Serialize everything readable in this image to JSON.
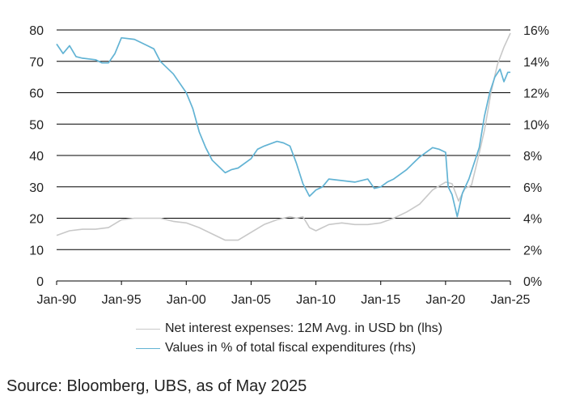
{
  "chart_data": {
    "type": "line",
    "x_ticks": [
      "Jan-90",
      "Jan-95",
      "Jan-00",
      "Jan-05",
      "Jan-10",
      "Jan-15",
      "Jan-20",
      "Jan-25"
    ],
    "x_range": [
      1990.0,
      2025.0
    ],
    "y_left": {
      "ticks": [
        "0",
        "10",
        "20",
        "30",
        "40",
        "50",
        "60",
        "70",
        "80"
      ],
      "range": [
        0,
        80
      ]
    },
    "y_right": {
      "ticks": [
        "0%",
        "2%",
        "4%",
        "6%",
        "8%",
        "10%",
        "12%",
        "14%",
        "16%"
      ],
      "range": [
        0,
        16
      ]
    },
    "grid": true,
    "series": [
      {
        "name": "Net interest expenses: 12M Avg. in USD bn (lhs)",
        "axis": "left",
        "color": "#c8c8c8",
        "x": [
          1990.0,
          1991.0,
          1992.0,
          1993.0,
          1994.0,
          1995.0,
          1996.0,
          1997.0,
          1998.0,
          1999.0,
          2000.0,
          2001.0,
          2002.0,
          2003.0,
          2004.0,
          2005.0,
          2006.0,
          2007.0,
          2008.0,
          2008.5,
          2009.0,
          2009.5,
          2010.0,
          2010.5,
          2011.0,
          2012.0,
          2013.0,
          2014.0,
          2015.0,
          2016.0,
          2017.0,
          2018.0,
          2019.0,
          2020.0,
          2020.5,
          2021.0,
          2021.5,
          2022.0,
          2022.5,
          2023.0,
          2023.5,
          2024.0,
          2024.5,
          2025.0
        ],
        "y": [
          14.5,
          16.0,
          16.5,
          16.5,
          17.0,
          19.5,
          20.0,
          20.0,
          20.0,
          19.0,
          18.5,
          17.0,
          15.0,
          13.0,
          13.0,
          15.5,
          18.0,
          19.5,
          20.5,
          20.0,
          20.5,
          17.0,
          16.0,
          17.0,
          18.0,
          18.5,
          18.0,
          18.0,
          18.5,
          20.0,
          22.0,
          24.5,
          29.0,
          31.5,
          31.0,
          25.5,
          29.5,
          30.5,
          39.0,
          48.0,
          60.0,
          69.0,
          74.5,
          79.0
        ]
      },
      {
        "name": "Values in % of total fiscal expenditures (rhs)",
        "axis": "right",
        "color": "#62b3d4",
        "x": [
          1990.0,
          1990.5,
          1991.0,
          1991.5,
          1992.0,
          1993.0,
          1993.5,
          1994.0,
          1994.5,
          1995.0,
          1996.0,
          1997.0,
          1997.5,
          1998.0,
          1999.0,
          2000.0,
          2000.5,
          2001.0,
          2001.5,
          2002.0,
          2002.5,
          2003.0,
          2003.5,
          2004.0,
          2005.0,
          2005.5,
          2006.0,
          2007.0,
          2007.5,
          2008.0,
          2008.5,
          2009.0,
          2009.5,
          2010.0,
          2010.5,
          2011.0,
          2012.0,
          2013.0,
          2014.0,
          2014.5,
          2015.0,
          2015.5,
          2016.0,
          2017.0,
          2018.0,
          2019.0,
          2019.5,
          2020.0,
          2020.2,
          2020.5,
          2020.9,
          2021.3,
          2021.8,
          2022.2,
          2022.6,
          2023.0,
          2023.4,
          2023.8,
          2024.2,
          2024.5,
          2024.8,
          2025.0
        ],
        "y": [
          15.1,
          14.5,
          15.0,
          14.3,
          14.2,
          14.1,
          13.9,
          13.9,
          14.5,
          15.5,
          15.4,
          15.0,
          14.8,
          14.0,
          13.2,
          12.0,
          11.0,
          9.5,
          8.5,
          7.7,
          7.3,
          6.9,
          7.1,
          7.2,
          7.8,
          8.4,
          8.6,
          8.9,
          8.8,
          8.6,
          7.5,
          6.2,
          5.4,
          5.8,
          6.0,
          6.5,
          6.4,
          6.3,
          6.5,
          5.9,
          6.0,
          6.3,
          6.5,
          7.1,
          7.9,
          8.5,
          8.4,
          8.2,
          6.0,
          5.5,
          4.1,
          5.6,
          6.5,
          7.5,
          8.5,
          10.5,
          12.0,
          13.0,
          13.5,
          12.7,
          13.3,
          13.3
        ]
      }
    ]
  },
  "source": "Source: Bloomberg, UBS, as of May 2025"
}
